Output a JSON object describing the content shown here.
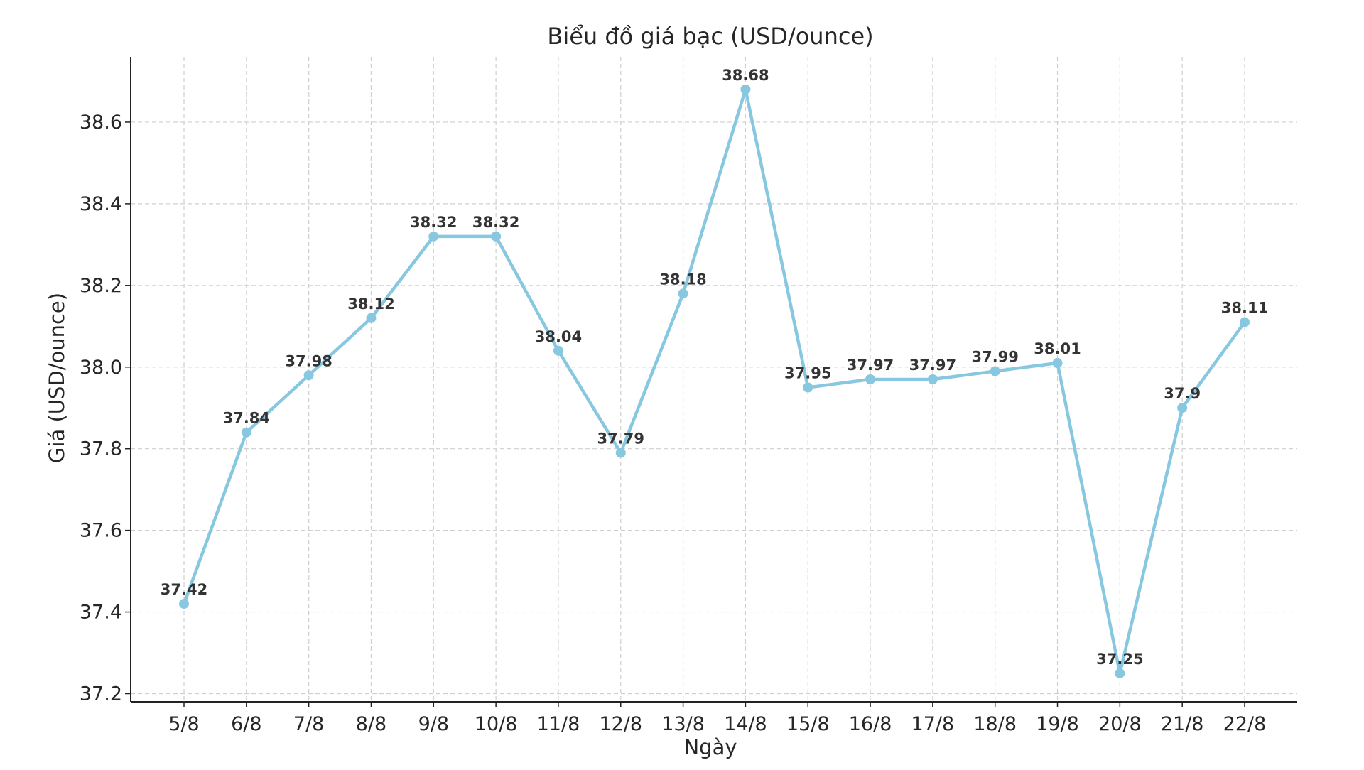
{
  "chart_data": {
    "type": "line",
    "title": "Biểu đồ giá bạc (USD/ounce)",
    "xlabel": "Ngày",
    "ylabel": "Giá (USD/ounce)",
    "categories": [
      "5/8",
      "6/8",
      "7/8",
      "8/8",
      "9/8",
      "10/8",
      "11/8",
      "12/8",
      "13/8",
      "14/8",
      "15/8",
      "16/8",
      "17/8",
      "18/8",
      "19/8",
      "20/8",
      "21/8",
      "22/8"
    ],
    "values": [
      37.42,
      37.84,
      37.98,
      38.12,
      38.32,
      38.32,
      38.04,
      37.79,
      38.18,
      38.68,
      37.95,
      37.97,
      37.97,
      37.99,
      38.01,
      37.25,
      37.9,
      38.11
    ],
    "data_labels": [
      "37.42",
      "37.84",
      "37.98",
      "38.12",
      "38.32",
      "38.32",
      "38.04",
      "37.79",
      "38.18",
      "38.68",
      "37.95",
      "37.97",
      "37.97",
      "37.99",
      "38.01",
      "37.25",
      "37.9",
      "38.11"
    ],
    "ylim": [
      37.18,
      38.76
    ],
    "yticks": [
      37.2,
      37.4,
      37.6,
      37.8,
      38.0,
      38.2,
      38.4,
      38.6
    ],
    "ytick_labels": [
      "37.2",
      "37.4",
      "37.6",
      "37.8",
      "38.0",
      "38.2",
      "38.4",
      "38.6"
    ],
    "grid": true,
    "line_color": "#87c8e0",
    "marker_color": "#87c8e0"
  }
}
